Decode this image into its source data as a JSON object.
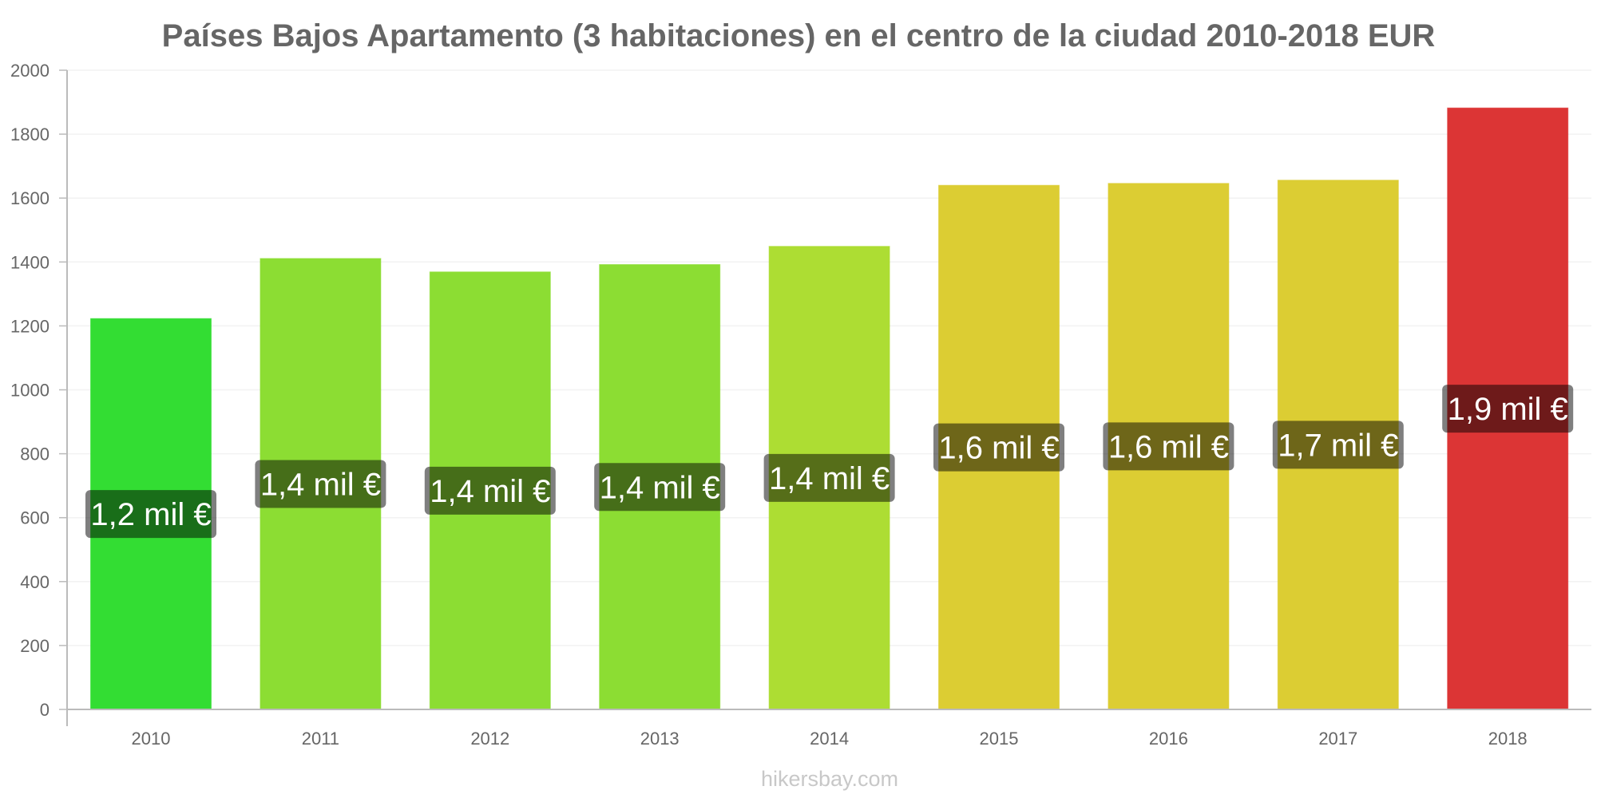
{
  "chart_data": {
    "type": "bar",
    "title": "Países Bajos Apartamento (3 habitaciones) en el centro de la ciudad 2010-2018 EUR",
    "xlabel": "",
    "ylabel": "",
    "categories": [
      "2010",
      "2011",
      "2012",
      "2013",
      "2014",
      "2015",
      "2016",
      "2017",
      "2018"
    ],
    "values": [
      1223,
      1411,
      1369,
      1392,
      1449,
      1640,
      1646,
      1656,
      1882
    ],
    "data_labels": [
      "1,2 mil €",
      "1,4 mil €",
      "1,4 mil €",
      "1,4 mil €",
      "1,4 mil €",
      "1,6 mil €",
      "1,6 mil €",
      "1,7 mil €",
      "1,9 mil €"
    ],
    "bar_colors": [
      "#33dd33",
      "#8cdd33",
      "#8cdd33",
      "#8cdd33",
      "#addd33",
      "#dccd33",
      "#dccd33",
      "#dccd33",
      "#dc3535"
    ],
    "ylim": [
      0,
      2000
    ],
    "yticks": [
      0,
      200,
      400,
      600,
      800,
      1000,
      1200,
      1400,
      1600,
      1800,
      2000
    ],
    "ytick_labels": [
      "0",
      "200",
      "400",
      "600",
      "800",
      "1000",
      "1200",
      "1400",
      "1600",
      "1800",
      "2000"
    ],
    "grid": true,
    "legend": "none"
  },
  "watermark": "hikersbay.com"
}
